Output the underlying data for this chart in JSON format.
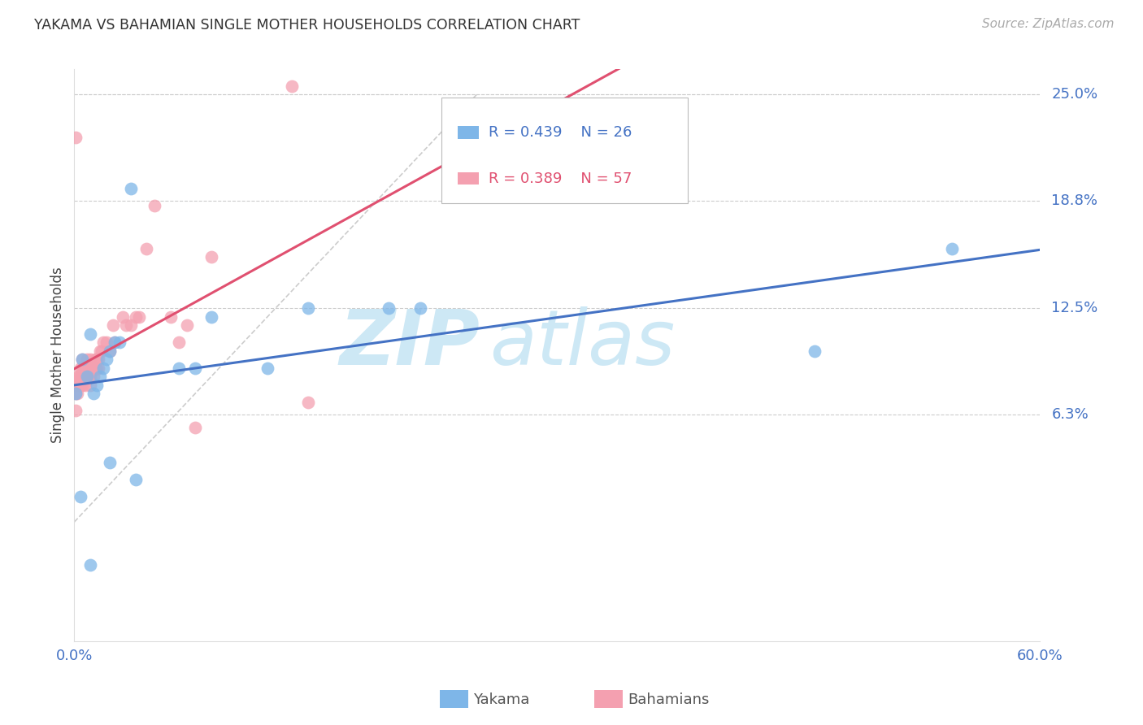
{
  "title": "YAKAMA VS BAHAMIAN SINGLE MOTHER HOUSEHOLDS CORRELATION CHART",
  "source": "Source: ZipAtlas.com",
  "ylabel": "Single Mother Households",
  "xlim": [
    0.0,
    0.6
  ],
  "ylim": [
    -0.07,
    0.265
  ],
  "yticks_right": [
    0.063,
    0.125,
    0.188,
    0.25
  ],
  "ytick_right_labels": [
    "6.3%",
    "12.5%",
    "18.8%",
    "25.0%"
  ],
  "grid_color": "#cccccc",
  "background_color": "#ffffff",
  "yakama_color": "#7EB6E8",
  "bahamian_color": "#F4A0B0",
  "yakama_line_color": "#4472C4",
  "bahamian_line_color": "#E05070",
  "ref_line_color": "#c0c0c0",
  "legend_R_yakama": "R = 0.439",
  "legend_N_yakama": "N = 26",
  "legend_R_bahamian": "R = 0.389",
  "legend_N_bahamian": "N = 57",
  "legend_color_yakama": "#4472C4",
  "legend_color_bahamian": "#E05070",
  "watermark_zip": "ZIP",
  "watermark_atlas": "atlas",
  "watermark_color": "#cde8f5",
  "yakama_x": [
    0.001,
    0.005,
    0.008,
    0.01,
    0.012,
    0.014,
    0.016,
    0.018,
    0.02,
    0.022,
    0.025,
    0.028,
    0.035,
    0.065,
    0.075,
    0.085,
    0.12,
    0.145,
    0.195,
    0.215,
    0.46,
    0.545,
    0.022,
    0.038,
    0.004,
    0.01
  ],
  "yakama_y": [
    0.075,
    0.095,
    0.085,
    0.11,
    0.075,
    0.08,
    0.085,
    0.09,
    0.095,
    0.1,
    0.105,
    0.105,
    0.195,
    0.09,
    0.09,
    0.12,
    0.09,
    0.125,
    0.125,
    0.125,
    0.1,
    0.16,
    0.035,
    0.025,
    0.015,
    -0.025
  ],
  "bahamian_x": [
    0.001,
    0.001,
    0.001,
    0.001,
    0.002,
    0.002,
    0.003,
    0.003,
    0.004,
    0.004,
    0.004,
    0.005,
    0.005,
    0.005,
    0.005,
    0.006,
    0.006,
    0.007,
    0.007,
    0.007,
    0.008,
    0.008,
    0.009,
    0.009,
    0.01,
    0.01,
    0.01,
    0.01,
    0.012,
    0.012,
    0.013,
    0.013,
    0.014,
    0.014,
    0.015,
    0.015,
    0.016,
    0.017,
    0.018,
    0.02,
    0.022,
    0.024,
    0.025,
    0.03,
    0.032,
    0.035,
    0.038,
    0.04,
    0.045,
    0.05,
    0.06,
    0.065,
    0.07,
    0.075,
    0.085,
    0.135,
    0.145
  ],
  "bahamian_y": [
    0.225,
    0.065,
    0.075,
    0.08,
    0.085,
    0.075,
    0.08,
    0.085,
    0.09,
    0.08,
    0.085,
    0.08,
    0.085,
    0.09,
    0.095,
    0.085,
    0.09,
    0.09,
    0.08,
    0.085,
    0.09,
    0.095,
    0.085,
    0.09,
    0.08,
    0.085,
    0.09,
    0.095,
    0.085,
    0.09,
    0.09,
    0.095,
    0.09,
    0.095,
    0.09,
    0.095,
    0.1,
    0.1,
    0.105,
    0.105,
    0.1,
    0.115,
    0.105,
    0.12,
    0.115,
    0.115,
    0.12,
    0.12,
    0.16,
    0.185,
    0.12,
    0.105,
    0.115,
    0.055,
    0.155,
    0.255,
    0.07
  ]
}
